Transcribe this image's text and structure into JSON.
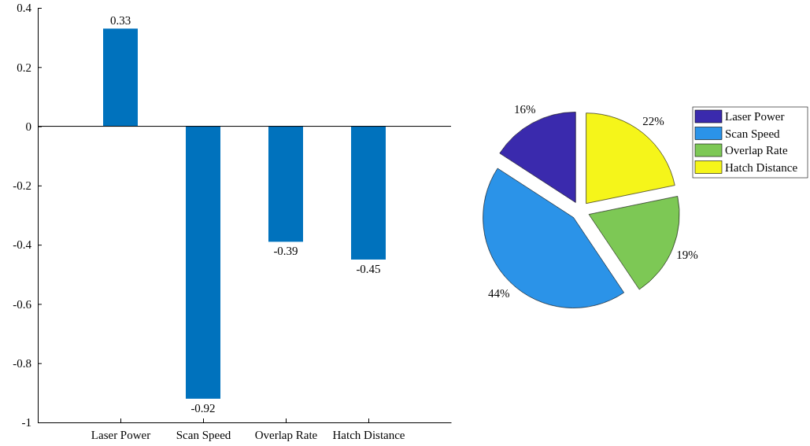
{
  "chart_data": [
    {
      "type": "bar",
      "categories": [
        "Laser Power",
        "Scan Speed",
        "Overlap Rate",
        "Hatch Distance"
      ],
      "values": [
        0.33,
        -0.92,
        -0.39,
        -0.45
      ],
      "color": "#0072bd",
      "ylim": [
        -1,
        0.4
      ],
      "yticks": [
        -1,
        -0.8,
        -0.6,
        -0.4,
        -0.2,
        0,
        0.2,
        0.4
      ],
      "data_labels": true
    },
    {
      "type": "pie",
      "categories": [
        "Laser Power",
        "Scan Speed",
        "Overlap Rate",
        "Hatch Distance"
      ],
      "values": [
        16,
        44,
        19,
        22
      ],
      "value_labels": [
        "16%",
        "44%",
        "19%",
        "22%"
      ],
      "colors": [
        "#3a2aad",
        "#2b93e8",
        "#7dc855",
        "#f5f51a"
      ],
      "legend": "top right"
    }
  ]
}
